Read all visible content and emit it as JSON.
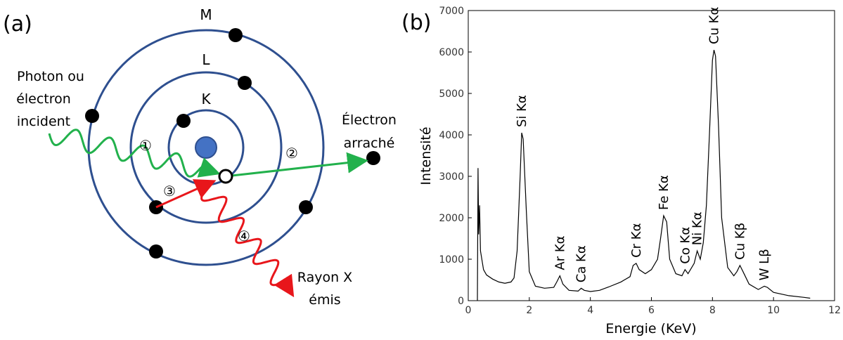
{
  "diagram": {
    "panel_label": "(a)",
    "shells": [
      "K",
      "L",
      "M"
    ],
    "incident": [
      "Photon ou",
      "électron",
      "incident"
    ],
    "ejected": [
      "Électron",
      "arraché"
    ],
    "emitted": [
      "Rayon X",
      "émis"
    ],
    "steps": [
      "①",
      "②",
      "③",
      "④"
    ]
  },
  "chart_data": {
    "type": "line",
    "panel_label": "(b)",
    "x_label": "Energie (KeV)",
    "y_label": "Intensité",
    "x": [
      0.3,
      0.32,
      0.34,
      0.37,
      0.4,
      0.5,
      0.6,
      0.8,
      1.0,
      1.2,
      1.4,
      1.5,
      1.6,
      1.7,
      1.75,
      1.8,
      1.9,
      2.0,
      2.2,
      2.5,
      2.8,
      2.9,
      3.0,
      3.1,
      3.3,
      3.6,
      3.7,
      3.8,
      4.0,
      4.3,
      4.6,
      5.0,
      5.3,
      5.4,
      5.5,
      5.6,
      5.8,
      6.0,
      6.2,
      6.3,
      6.4,
      6.5,
      6.6,
      6.8,
      7.0,
      7.1,
      7.2,
      7.4,
      7.5,
      7.6,
      7.7,
      7.8,
      7.9,
      8.0,
      8.05,
      8.1,
      8.2,
      8.3,
      8.5,
      8.7,
      8.8,
      8.9,
      9.0,
      9.2,
      9.5,
      9.7,
      9.8,
      10.0,
      10.5,
      11.0,
      11.2
    ],
    "values": [
      0,
      3200,
      1600,
      2300,
      1200,
      750,
      620,
      520,
      450,
      420,
      450,
      550,
      1200,
      3000,
      4050,
      3900,
      2200,
      700,
      350,
      300,
      320,
      450,
      600,
      400,
      250,
      230,
      300,
      250,
      220,
      250,
      330,
      450,
      580,
      850,
      900,
      750,
      650,
      750,
      1000,
      1500,
      2050,
      1900,
      1000,
      650,
      600,
      750,
      650,
      900,
      1200,
      1000,
      1400,
      2300,
      4000,
      5800,
      6050,
      5900,
      4200,
      2000,
      800,
      600,
      700,
      850,
      700,
      400,
      270,
      350,
      320,
      200,
      120,
      80,
      60
    ],
    "color": "#000000",
    "xlim": [
      0,
      12
    ],
    "ylim": [
      0,
      7000
    ],
    "xticks": [
      0,
      2,
      4,
      6,
      8,
      10,
      12
    ],
    "yticks": [
      0,
      1000,
      2000,
      3000,
      4000,
      5000,
      6000,
      7000
    ],
    "annotations": [
      {
        "text": "Si Kα",
        "x": 1.75
      },
      {
        "text": "Ar Kα",
        "x": 3.0
      },
      {
        "text": "Ca Kα",
        "x": 3.7
      },
      {
        "text": "Cr Kα",
        "x": 5.5
      },
      {
        "text": "Fe Kα",
        "x": 6.4
      },
      {
        "text": "Co Kα",
        "x": 7.1
      },
      {
        "text": "Ni Kα",
        "x": 7.5
      },
      {
        "text": "Cu Kα",
        "x": 8.05
      },
      {
        "text": "Cu Kβ",
        "x": 8.9
      },
      {
        "text": "W Lβ",
        "x": 9.7
      }
    ]
  }
}
